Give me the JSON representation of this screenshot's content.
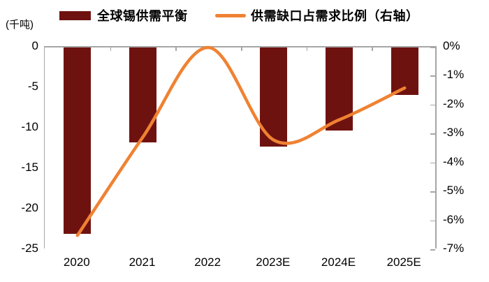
{
  "unit_label": "(千吨)",
  "legend": [
    {
      "label": "全球锡供需平衡",
      "type": "bar",
      "color": "#6E1210"
    },
    {
      "label": "供需缺口占需求比例（右轴）",
      "type": "line",
      "color": "#EF8232"
    }
  ],
  "colors": {
    "bar": "#6E1210",
    "line": "#EF8232",
    "axis": "#a6a6a6",
    "text": "#000000"
  },
  "chart_data": {
    "type": "bar",
    "subtype": "bar+line combo, dual axis",
    "categories": [
      "2020",
      "2021",
      "2022",
      "2023E",
      "2024E",
      "2025E"
    ],
    "series": [
      {
        "name": "全球锡供需平衡",
        "type": "bar",
        "axis": "left",
        "unit": "千吨",
        "color": "#6E1210",
        "values": [
          -23.0,
          -11.7,
          0,
          -12.2,
          -10.3,
          -5.9
        ]
      },
      {
        "name": "供需缺口占需求比例（右轴）",
        "type": "line",
        "axis": "right",
        "unit": "%",
        "color": "#EF8232",
        "values": [
          -6.5,
          -3.1,
          0,
          -3.2,
          -2.5,
          -1.4
        ]
      }
    ],
    "left_axis": {
      "unit_label": "(千吨)",
      "min": -25,
      "max": 0,
      "tick_step": 5,
      "tick_labels": [
        "0",
        "-5",
        "-10",
        "-15",
        "-20",
        "-25"
      ]
    },
    "right_axis": {
      "min": -7,
      "max": 0,
      "tick_step": 1,
      "tick_labels": [
        "0%",
        "-1%",
        "-2%",
        "-3%",
        "-4%",
        "-5%",
        "-6%",
        "-7%"
      ]
    },
    "grid": false,
    "legend_position": "top"
  }
}
